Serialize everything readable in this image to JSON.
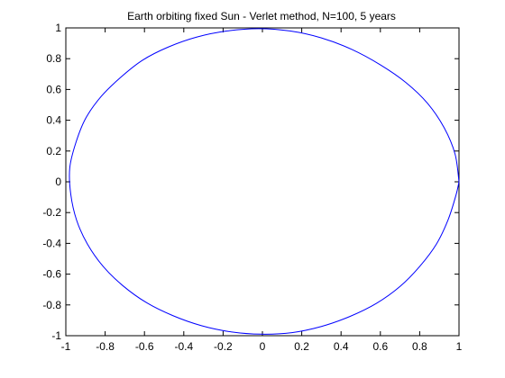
{
  "chart_data": {
    "type": "line",
    "title": "Earth orbiting fixed Sun - Verlet method, N=100, 5 years",
    "xlabel": "",
    "ylabel": "",
    "xlim": [
      -1,
      1
    ],
    "ylim": [
      -1,
      1
    ],
    "xticks": [
      -1,
      -0.8,
      -0.6,
      -0.4,
      -0.2,
      0,
      0.2,
      0.4,
      0.6,
      0.8,
      1
    ],
    "yticks": [
      -1,
      -0.8,
      -0.6,
      -0.4,
      -0.2,
      0,
      0.2,
      0.4,
      0.6,
      0.8,
      1
    ],
    "xtick_labels": [
      "-1",
      "-0.8",
      "-0.6",
      "-0.4",
      "-0.2",
      "0",
      "0.2",
      "0.4",
      "0.6",
      "0.8",
      "1"
    ],
    "ytick_labels": [
      "-1",
      "-0.8",
      "-0.6",
      "-0.4",
      "-0.2",
      "0",
      "0.2",
      "0.4",
      "0.6",
      "0.8",
      "1"
    ],
    "grid": false,
    "legend": "none",
    "series": [
      {
        "color": "#0000ff",
        "x": [
          1.0,
          0.98,
          0.925,
          0.84,
          0.73,
          0.6,
          0.455,
          0.3,
          0.14,
          -0.02,
          -0.18,
          -0.335,
          -0.48,
          -0.61,
          -0.72,
          -0.82,
          -0.9,
          -0.95,
          -0.98,
          -0.975,
          -0.945,
          -0.89,
          -0.81,
          -0.71,
          -0.59,
          -0.455,
          -0.31,
          -0.16,
          -0.005,
          0.15,
          0.3,
          0.445,
          0.58,
          0.7,
          0.8,
          0.885,
          0.945,
          0.985,
          1.0
        ],
        "y": [
          0.0,
          0.18,
          0.35,
          0.51,
          0.645,
          0.76,
          0.86,
          0.935,
          0.98,
          0.995,
          0.98,
          0.94,
          0.875,
          0.79,
          0.68,
          0.555,
          0.41,
          0.25,
          0.09,
          -0.08,
          -0.25,
          -0.405,
          -0.55,
          -0.675,
          -0.785,
          -0.87,
          -0.935,
          -0.975,
          -0.99,
          -0.98,
          -0.94,
          -0.875,
          -0.79,
          -0.68,
          -0.55,
          -0.405,
          -0.245,
          -0.085,
          0.0
        ]
      }
    ]
  }
}
